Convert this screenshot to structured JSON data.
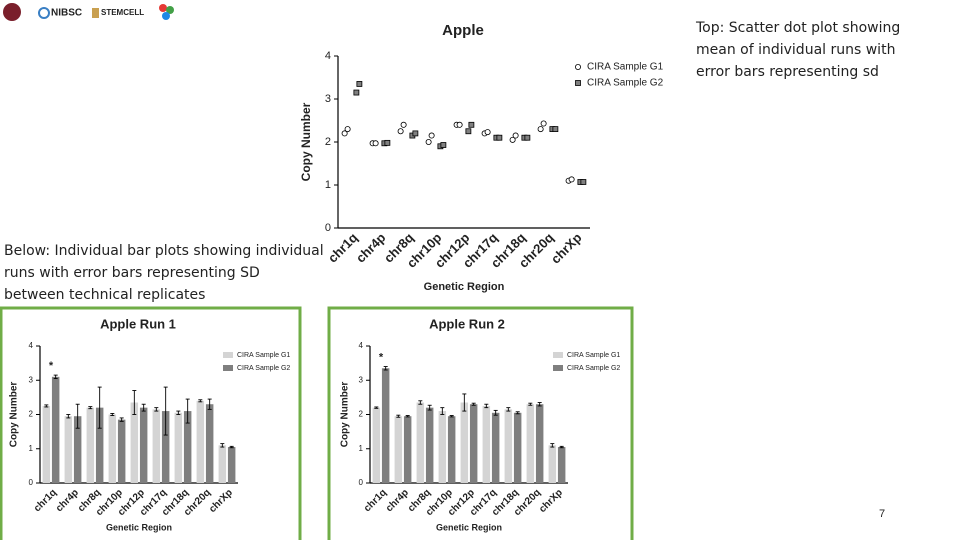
{
  "logos": [
    "NIBSC",
    "STEMCELL"
  ],
  "caption_top": "Top: Scatter dot plot showing mean of individual runs with error bars representing sd",
  "caption_bottom": "Below: Individual bar plots showing individual runs with error bars representing SD between technical replicates",
  "page_number": "7",
  "chart_data": [
    {
      "type": "scatter",
      "title": "Apple",
      "x_label": "Genetic Region",
      "y_label": "Copy Number",
      "categories": [
        "chr1q",
        "chr4p",
        "chr8q",
        "chr10p",
        "chr12p",
        "chr17q",
        "chr18q",
        "chr20q",
        "chrXp"
      ],
      "ylim": [
        0,
        4
      ],
      "yticks": [
        0,
        1,
        2,
        3,
        4
      ],
      "series": [
        {
          "name": "CIRA Sample G1",
          "color": "#ffffff",
          "marker": "circle",
          "values": [
            [
              2.2,
              2.3
            ],
            [
              1.97,
              1.97
            ],
            [
              2.25,
              2.4
            ],
            [
              2.0,
              2.15
            ],
            [
              2.4,
              2.4
            ],
            [
              2.2,
              2.23
            ],
            [
              2.05,
              2.15
            ],
            [
              2.3,
              2.43
            ],
            [
              1.1,
              1.13
            ]
          ]
        },
        {
          "name": "CIRA Sample G2",
          "color": "#808080",
          "marker": "square",
          "values": [
            [
              3.15,
              3.35
            ],
            [
              1.97,
              1.98
            ],
            [
              2.15,
              2.2
            ],
            [
              1.9,
              1.93
            ],
            [
              2.25,
              2.4
            ],
            [
              2.1,
              2.1
            ],
            [
              2.1,
              2.1
            ],
            [
              2.3,
              2.3
            ],
            [
              1.07,
              1.07
            ]
          ]
        }
      ]
    },
    {
      "type": "bar",
      "title": "Apple Run 1",
      "x_label": "Genetic Region",
      "y_label": "Copy Number",
      "categories": [
        "chr1q",
        "chr4p",
        "chr8q",
        "chr10p",
        "chr12p",
        "chr17q",
        "chr18q",
        "chr20q",
        "chrXp"
      ],
      "ylim": [
        0,
        4
      ],
      "yticks": [
        0,
        1,
        2,
        3,
        4
      ],
      "annotations": [
        {
          "text": "*",
          "category": 0
        }
      ],
      "series": [
        {
          "name": "CIRA Sample G1",
          "color": "#d4d4d4",
          "values": [
            2.25,
            1.95,
            2.2,
            2.0,
            2.35,
            2.15,
            2.05,
            2.4,
            1.1
          ],
          "errors": [
            0.03,
            0.05,
            0.03,
            0.03,
            0.35,
            0.05,
            0.05,
            0.03,
            0.05
          ]
        },
        {
          "name": "CIRA Sample G2",
          "color": "#7f7f7f",
          "values": [
            3.1,
            1.95,
            2.2,
            1.85,
            2.2,
            2.1,
            2.1,
            2.3,
            1.05
          ],
          "errors": [
            0.05,
            0.35,
            0.6,
            0.05,
            0.1,
            0.7,
            0.35,
            0.15,
            0.02
          ]
        }
      ]
    },
    {
      "type": "bar",
      "title": "Apple Run 2",
      "x_label": "Genetic Region",
      "y_label": "Copy Number",
      "categories": [
        "chr1q",
        "chr4p",
        "chr8q",
        "chr10p",
        "chr12p",
        "chr17q",
        "chr18q",
        "chr20q",
        "chrXp"
      ],
      "ylim": [
        0,
        4
      ],
      "yticks": [
        0,
        1,
        2,
        3,
        4
      ],
      "annotations": [
        {
          "text": "*",
          "category": 0
        }
      ],
      "series": [
        {
          "name": "CIRA Sample G1",
          "color": "#d4d4d4",
          "values": [
            2.2,
            1.95,
            2.35,
            2.1,
            2.35,
            2.25,
            2.15,
            2.3,
            1.1
          ],
          "errors": [
            0.02,
            0.03,
            0.05,
            0.1,
            0.25,
            0.05,
            0.05,
            0.03,
            0.05
          ]
        },
        {
          "name": "CIRA Sample G2",
          "color": "#7f7f7f",
          "values": [
            3.35,
            1.95,
            2.2,
            1.95,
            2.3,
            2.05,
            2.05,
            2.3,
            1.05
          ],
          "errors": [
            0.05,
            0.02,
            0.07,
            0.02,
            0.03,
            0.07,
            0.03,
            0.05,
            0.02
          ]
        }
      ]
    }
  ]
}
